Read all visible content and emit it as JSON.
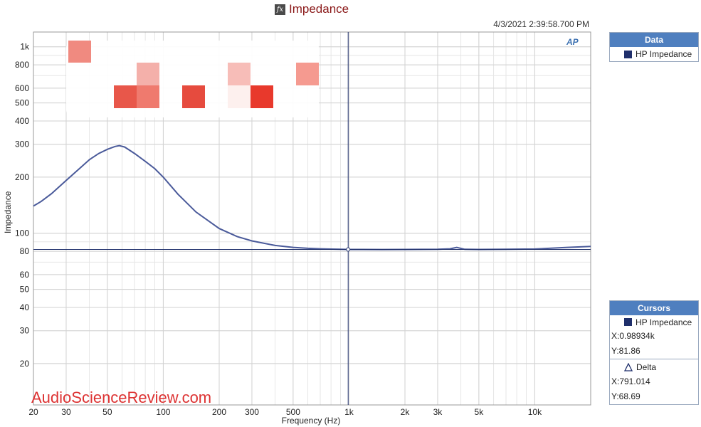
{
  "title": "Impedance",
  "timestamp": "4/3/2021 2:39:58.700 PM",
  "logo_text": "AP",
  "watermark": "AudioScienceReview.com",
  "data_panel": {
    "header": "Data",
    "items": [
      {
        "label": "HP Impedance",
        "color": "#1f2f6b"
      }
    ]
  },
  "cursors_panel": {
    "header": "Cursors",
    "series_label": "HP Impedance",
    "x_value": "X:0.98934k",
    "y_value": "Y:81.86",
    "delta_label": "Delta",
    "delta_x": "X:791.014",
    "delta_y": "Y:68.69"
  },
  "chart_data": {
    "type": "line",
    "xlabel": "Frequency (Hz)",
    "ylabel": "Impedance",
    "x_scale": "log",
    "y_scale": "log",
    "xlim": [
      20,
      20000
    ],
    "ylim": [
      12,
      1200
    ],
    "grid": true,
    "x_ticks": [
      {
        "v": 20,
        "l": "20"
      },
      {
        "v": 30,
        "l": "30"
      },
      {
        "v": 50,
        "l": "50"
      },
      {
        "v": 100,
        "l": "100"
      },
      {
        "v": 200,
        "l": "200"
      },
      {
        "v": 300,
        "l": "300"
      },
      {
        "v": 500,
        "l": "500"
      },
      {
        "v": 1000,
        "l": "1k"
      },
      {
        "v": 2000,
        "l": "2k"
      },
      {
        "v": 3000,
        "l": "3k"
      },
      {
        "v": 5000,
        "l": "5k"
      },
      {
        "v": 10000,
        "l": "10k"
      }
    ],
    "y_ticks": [
      {
        "v": 20,
        "l": "20"
      },
      {
        "v": 30,
        "l": "30"
      },
      {
        "v": 40,
        "l": "40"
      },
      {
        "v": 50,
        "l": "50"
      },
      {
        "v": 60,
        "l": "60"
      },
      {
        "v": 80,
        "l": "80"
      },
      {
        "v": 100,
        "l": "100"
      },
      {
        "v": 200,
        "l": "200"
      },
      {
        "v": 300,
        "l": "300"
      },
      {
        "v": 400,
        "l": "400"
      },
      {
        "v": 500,
        "l": "500"
      },
      {
        "v": 600,
        "l": "600"
      },
      {
        "v": 800,
        "l": "800"
      },
      {
        "v": 1000,
        "l": "1k"
      }
    ],
    "cursor": {
      "x": 989.34,
      "y": 81.86
    },
    "series": [
      {
        "name": "HP Impedance",
        "color": "#4a5a9a",
        "x": [
          20,
          22,
          25,
          30,
          35,
          40,
          45,
          50,
          55,
          58,
          62,
          70,
          80,
          90,
          100,
          120,
          150,
          200,
          250,
          300,
          400,
          500,
          600,
          700,
          800,
          900,
          1000,
          1500,
          2000,
          3000,
          3500,
          3800,
          4200,
          5000,
          7000,
          10000,
          15000,
          20000
        ],
        "y": [
          140,
          148,
          163,
          192,
          220,
          248,
          268,
          282,
          292,
          295,
          290,
          268,
          243,
          222,
          200,
          162,
          130,
          106,
          96,
          91,
          86,
          84,
          83,
          82.5,
          82.2,
          82,
          81.9,
          81.8,
          81.9,
          82,
          82.5,
          84,
          82,
          81.9,
          82,
          82.3,
          84,
          85
        ]
      }
    ]
  }
}
